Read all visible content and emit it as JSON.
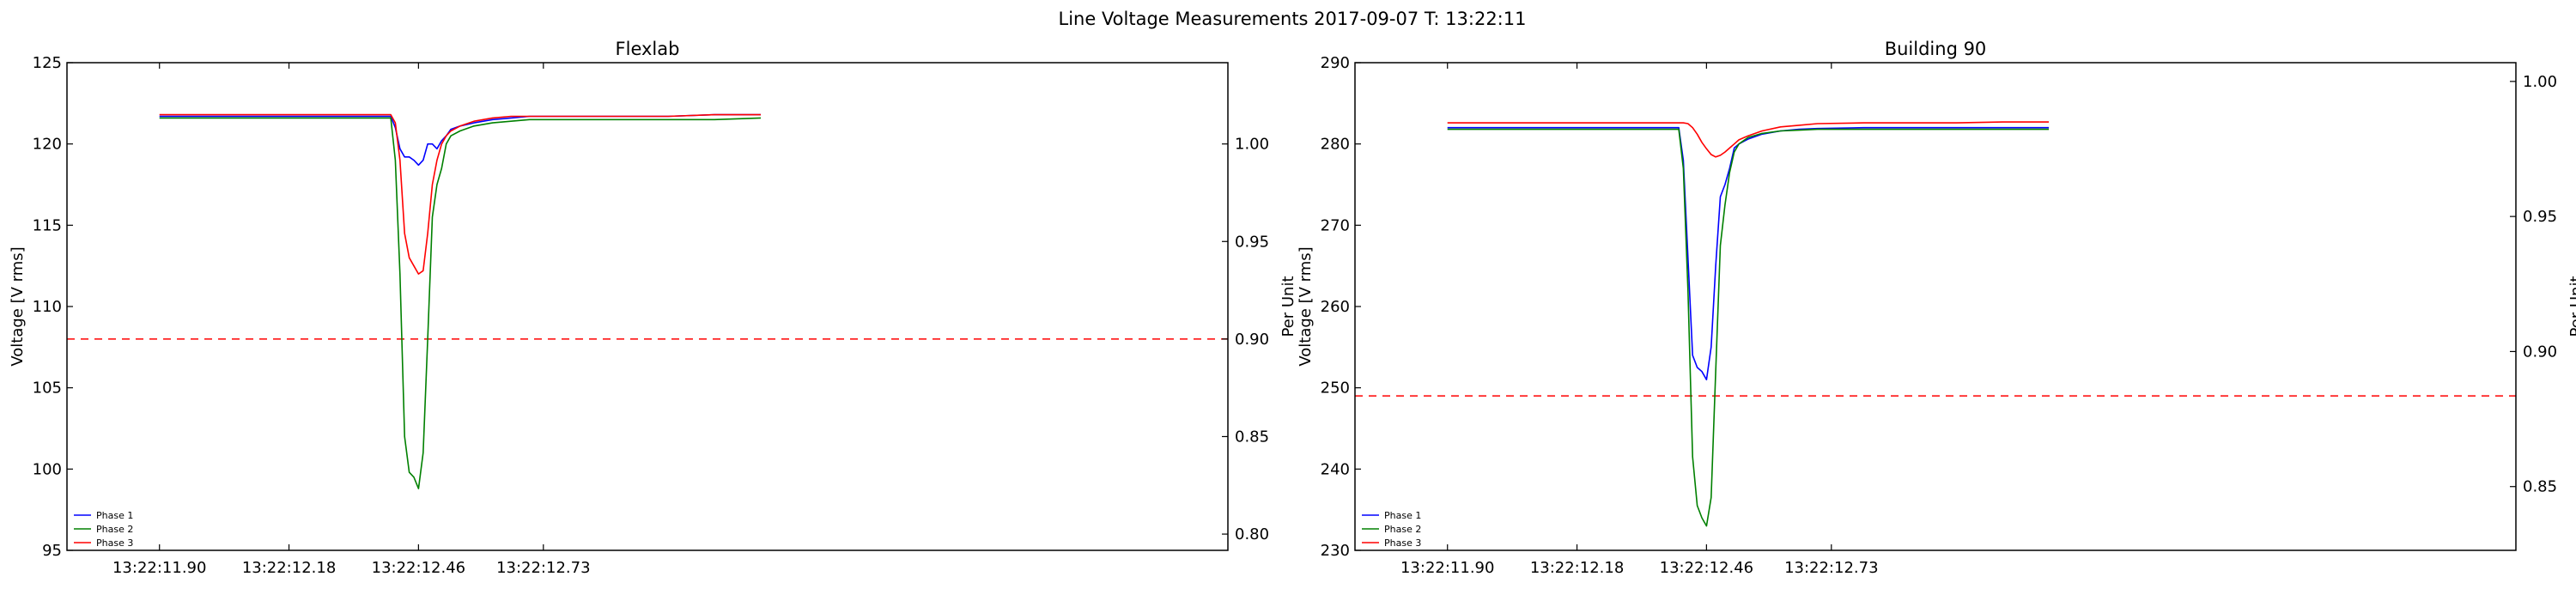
{
  "figure": {
    "title": "Line Voltage Measurements 2017-09-07 T: 13:22:11"
  },
  "colors": {
    "phase1": "#0000ff",
    "phase2": "#008000",
    "phase3": "#ff0000",
    "reference": "#ff0000"
  },
  "chart_data": [
    {
      "type": "line",
      "title": "Flexlab",
      "xlabel": "",
      "ylabel": "Voltage [V rms]",
      "y2label": "Per Unit",
      "grid": false,
      "legend": "lower-left",
      "xlim": [
        11.7,
        14.21
      ],
      "ylim": [
        95,
        125
      ],
      "y2lim": [
        0.79167,
        1.04167
      ],
      "xticks": [
        11.9,
        12.18,
        12.46,
        12.73
      ],
      "xtick_labels": [
        "13:22:11.90",
        "13:22:12.18",
        "13:22:12.46",
        "13:22:12.73"
      ],
      "yticks": [
        95,
        100,
        105,
        110,
        115,
        120,
        125
      ],
      "ytick_labels": [
        "95",
        "100",
        "105",
        "110",
        "115",
        "120",
        "125"
      ],
      "y2ticks": [
        0.8,
        0.85,
        0.9,
        0.95,
        1.0
      ],
      "y2tick_labels": [
        "0.80",
        "0.85",
        "0.90",
        "0.95",
        "1.00"
      ],
      "reference_line": {
        "y": 108,
        "style": "dashed",
        "color": "#ff0000"
      },
      "series": [
        {
          "name": "Phase 1",
          "color": "#0000ff",
          "x": [
            11.9,
            12.0,
            12.1,
            12.2,
            12.3,
            12.36,
            12.38,
            12.39,
            12.4,
            12.41,
            12.42,
            12.43,
            12.44,
            12.45,
            12.46,
            12.47,
            12.48,
            12.49,
            12.5,
            12.51,
            12.52,
            12.53,
            12.55,
            12.58,
            12.62,
            12.66,
            12.7,
            12.8,
            12.9,
            13.0,
            13.1,
            13.2
          ],
          "y": [
            121.7,
            121.7,
            121.7,
            121.7,
            121.7,
            121.7,
            121.7,
            121.7,
            121.7,
            121.0,
            119.7,
            119.2,
            119.2,
            119.0,
            118.7,
            119.0,
            120.0,
            120.0,
            119.7,
            120.2,
            120.5,
            120.9,
            121.1,
            121.3,
            121.5,
            121.6,
            121.7,
            121.7,
            121.7,
            121.7,
            121.8,
            121.8
          ]
        },
        {
          "name": "Phase 2",
          "color": "#008000",
          "x": [
            11.9,
            12.0,
            12.1,
            12.2,
            12.3,
            12.36,
            12.38,
            12.39,
            12.4,
            12.41,
            12.42,
            12.43,
            12.44,
            12.45,
            12.46,
            12.47,
            12.48,
            12.49,
            12.5,
            12.51,
            12.52,
            12.53,
            12.55,
            12.58,
            12.62,
            12.66,
            12.7,
            12.8,
            12.9,
            13.0,
            13.1,
            13.2
          ],
          "y": [
            121.6,
            121.6,
            121.6,
            121.6,
            121.6,
            121.6,
            121.6,
            121.6,
            121.6,
            119.0,
            112.0,
            102.0,
            99.8,
            99.5,
            98.8,
            101.0,
            108.0,
            115.5,
            117.5,
            118.5,
            120.0,
            120.5,
            120.8,
            121.1,
            121.3,
            121.4,
            121.5,
            121.5,
            121.5,
            121.5,
            121.5,
            121.6
          ]
        },
        {
          "name": "Phase 3",
          "color": "#ff0000",
          "x": [
            11.9,
            12.0,
            12.1,
            12.2,
            12.3,
            12.36,
            12.38,
            12.39,
            12.4,
            12.41,
            12.42,
            12.43,
            12.44,
            12.45,
            12.46,
            12.47,
            12.48,
            12.49,
            12.5,
            12.51,
            12.52,
            12.53,
            12.55,
            12.58,
            12.62,
            12.66,
            12.7,
            12.8,
            12.9,
            13.0,
            13.1,
            13.2
          ],
          "y": [
            121.8,
            121.8,
            121.8,
            121.8,
            121.8,
            121.8,
            121.8,
            121.8,
            121.8,
            121.3,
            119.0,
            114.5,
            113.0,
            112.5,
            112.0,
            112.2,
            114.5,
            117.5,
            119.0,
            120.0,
            120.5,
            120.8,
            121.1,
            121.4,
            121.6,
            121.7,
            121.7,
            121.7,
            121.7,
            121.7,
            121.8,
            121.8
          ]
        }
      ]
    },
    {
      "type": "line",
      "title": "Building 90",
      "xlabel": "",
      "ylabel": "Voltage [V rms]",
      "y2label": "Per Unit",
      "grid": false,
      "legend": "lower-left",
      "xlim": [
        11.7,
        14.21
      ],
      "ylim": [
        230,
        290
      ],
      "y2lim": [
        0.82639,
        1.00694
      ],
      "xticks": [
        11.9,
        12.18,
        12.46,
        12.73
      ],
      "xtick_labels": [
        "13:22:11.90",
        "13:22:12.18",
        "13:22:12.46",
        "13:22:12.73"
      ],
      "yticks": [
        230,
        240,
        250,
        260,
        270,
        280,
        290
      ],
      "ytick_labels": [
        "230",
        "240",
        "250",
        "260",
        "270",
        "280",
        "290"
      ],
      "y2ticks": [
        0.85,
        0.9,
        0.95,
        1.0
      ],
      "y2tick_labels": [
        "0.85",
        "0.90",
        "0.95",
        "1.00"
      ],
      "reference_line": {
        "y": 249,
        "style": "dashed",
        "color": "#ff0000"
      },
      "series": [
        {
          "name": "Phase 1",
          "color": "#0000ff",
          "x": [
            11.9,
            12.0,
            12.1,
            12.2,
            12.3,
            12.38,
            12.39,
            12.4,
            12.41,
            12.42,
            12.43,
            12.44,
            12.45,
            12.46,
            12.47,
            12.48,
            12.49,
            12.5,
            12.51,
            12.52,
            12.53,
            12.55,
            12.58,
            12.62,
            12.66,
            12.7,
            12.8,
            12.9,
            13.0,
            13.1,
            13.2
          ],
          "y": [
            282.0,
            282.0,
            282.0,
            282.0,
            282.0,
            282.0,
            282.0,
            282.0,
            278.0,
            266.0,
            254.0,
            252.5,
            252.0,
            251.0,
            255.0,
            265.0,
            273.5,
            275.0,
            277.0,
            279.5,
            280.0,
            280.6,
            281.2,
            281.6,
            281.8,
            281.9,
            282.0,
            282.0,
            282.0,
            282.0,
            282.0
          ]
        },
        {
          "name": "Phase 2",
          "color": "#008000",
          "x": [
            11.9,
            12.0,
            12.1,
            12.2,
            12.3,
            12.38,
            12.39,
            12.4,
            12.41,
            12.42,
            12.43,
            12.44,
            12.45,
            12.46,
            12.47,
            12.48,
            12.49,
            12.5,
            12.51,
            12.52,
            12.53,
            12.55,
            12.58,
            12.62,
            12.66,
            12.7,
            12.8,
            12.9,
            13.0,
            13.1,
            13.2
          ],
          "y": [
            281.8,
            281.8,
            281.8,
            281.8,
            281.8,
            281.8,
            281.8,
            281.8,
            277.0,
            262.0,
            241.5,
            235.5,
            234.0,
            233.0,
            236.5,
            252.0,
            267.5,
            272.5,
            276.5,
            279.0,
            280.0,
            280.8,
            281.3,
            281.6,
            281.7,
            281.8,
            281.8,
            281.8,
            281.8,
            281.8,
            281.8
          ]
        },
        {
          "name": "Phase 3",
          "color": "#ff0000",
          "x": [
            11.9,
            12.0,
            12.1,
            12.2,
            12.3,
            12.38,
            12.39,
            12.4,
            12.41,
            12.42,
            12.43,
            12.44,
            12.45,
            12.46,
            12.47,
            12.48,
            12.49,
            12.5,
            12.51,
            12.52,
            12.53,
            12.55,
            12.58,
            12.62,
            12.66,
            12.7,
            12.8,
            12.9,
            13.0,
            13.1,
            13.2
          ],
          "y": [
            282.6,
            282.6,
            282.6,
            282.6,
            282.6,
            282.6,
            282.6,
            282.6,
            282.6,
            282.5,
            282.0,
            281.2,
            280.2,
            279.4,
            278.7,
            278.4,
            278.6,
            279.0,
            279.5,
            280.0,
            280.5,
            281.0,
            281.6,
            282.1,
            282.3,
            282.5,
            282.6,
            282.6,
            282.6,
            282.7,
            282.7
          ]
        }
      ]
    }
  ]
}
